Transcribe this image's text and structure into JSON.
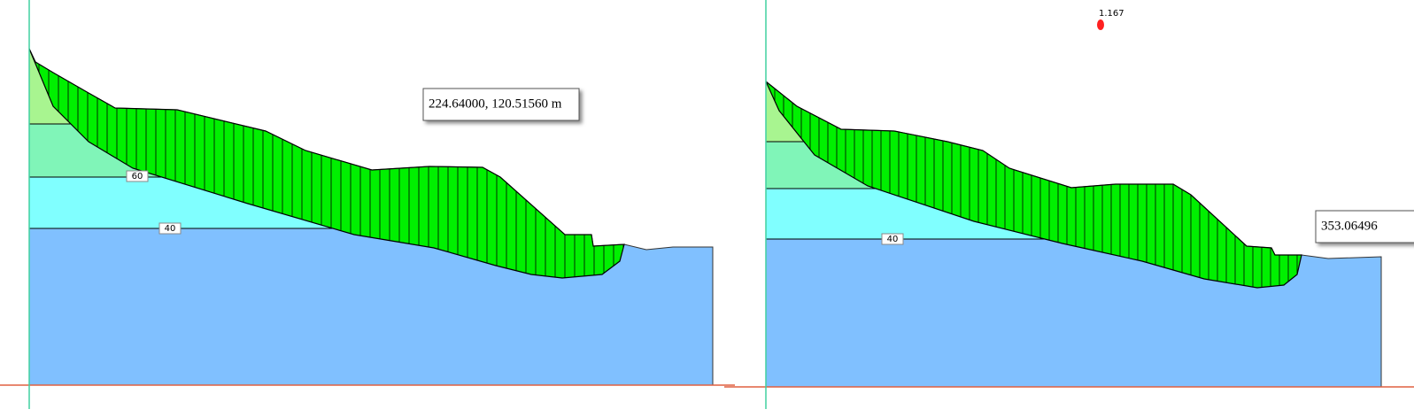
{
  "panels": [
    {
      "tooltip": "224.64000, 120.51560 m",
      "contour_labels": [
        "60",
        "40"
      ]
    },
    {
      "tooltip": "353.06496",
      "contour_labels": [
        "40"
      ],
      "safety_factor": "1.167"
    }
  ]
}
